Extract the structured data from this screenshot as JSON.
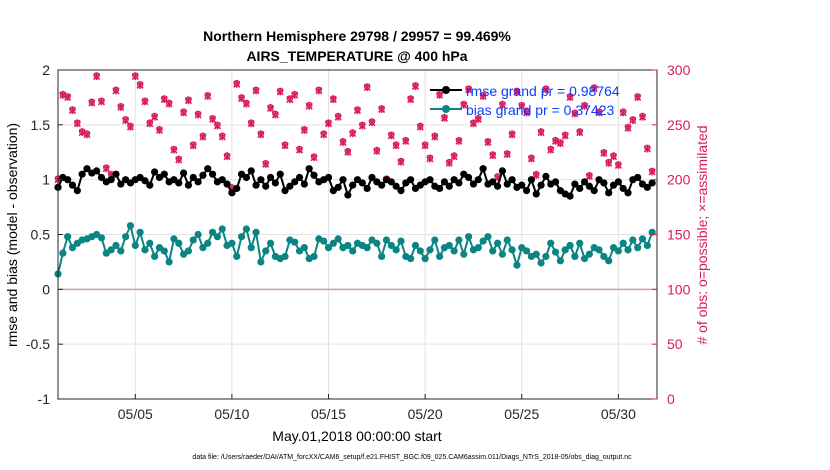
{
  "chart_data": {
    "type": "line",
    "title": "Northern Hemisphere 29798 / 29957 = 99.469%",
    "subtitle": "AIRS_TEMPERATURE @ 400 hPa",
    "xlabel": "May.01,2018 00:00:00 start",
    "ylabel": "rmse and bias (model - observation)",
    "y2label": "# of obs: o=possible; ×=assimilated",
    "footer": "data file: /Users/raeder/DAI/ATM_forcXX/CAM6_setup/f.e21.FHIST_BGC.f09_025.CAM6assim.011/Diags_NTrS_2018-05/obs_diag_output.nc",
    "xlim": [
      1,
      32
    ],
    "ylim": [
      -1,
      2
    ],
    "y2lim": [
      0,
      300
    ],
    "xticks": [
      5,
      10,
      15,
      20,
      25,
      30
    ],
    "xtick_labels": [
      "05/05",
      "05/10",
      "05/15",
      "05/20",
      "05/25",
      "05/30"
    ],
    "yticks": [
      -1,
      -0.5,
      0,
      0.5,
      1,
      1.5,
      2
    ],
    "ytick_labels": [
      "-1",
      "-0.5",
      "0",
      "0.5",
      "1",
      "1.5",
      "2"
    ],
    "y2ticks": [
      0,
      50,
      100,
      150,
      200,
      250,
      300
    ],
    "y2tick_labels": [
      "0",
      "50",
      "100",
      "150",
      "200",
      "250",
      "300"
    ],
    "grid": true,
    "legend_position": "top-right",
    "colors": {
      "rmse": "#000000",
      "bias": "#0b8583",
      "obs": "#d81b60",
      "zero_line": "#c9a0aa"
    },
    "series": [
      {
        "name": "rmse grand pr = 0.98764",
        "axis": "left",
        "color": "#000000",
        "x": [
          1.0,
          1.25,
          1.5,
          1.75,
          2.0,
          2.25,
          2.5,
          2.75,
          3.0,
          3.25,
          3.5,
          3.75,
          4.0,
          4.25,
          4.5,
          4.75,
          5.0,
          5.25,
          5.5,
          5.75,
          6.0,
          6.25,
          6.5,
          6.75,
          7.0,
          7.25,
          7.5,
          7.75,
          8.0,
          8.25,
          8.5,
          8.75,
          9.0,
          9.25,
          9.5,
          9.75,
          10.0,
          10.25,
          10.5,
          10.75,
          11.0,
          11.25,
          11.5,
          11.75,
          12.0,
          12.25,
          12.5,
          12.75,
          13.0,
          13.25,
          13.5,
          13.75,
          14.0,
          14.25,
          14.5,
          14.75,
          15.0,
          15.25,
          15.5,
          15.75,
          16.0,
          16.25,
          16.5,
          16.75,
          17.0,
          17.25,
          17.5,
          17.75,
          18.0,
          18.25,
          18.5,
          18.75,
          19.0,
          19.25,
          19.5,
          19.75,
          20.0,
          20.25,
          20.5,
          20.75,
          21.0,
          21.25,
          21.5,
          21.75,
          22.0,
          22.25,
          22.5,
          22.75,
          23.0,
          23.25,
          23.5,
          23.75,
          24.0,
          24.25,
          24.5,
          24.75,
          25.0,
          25.25,
          25.5,
          25.75,
          26.0,
          26.25,
          26.5,
          26.75,
          27.0,
          27.25,
          27.5,
          27.75,
          28.0,
          28.25,
          28.5,
          28.75,
          29.0,
          29.25,
          29.5,
          29.75,
          30.0,
          30.25,
          30.5,
          30.75,
          31.0,
          31.25,
          31.5,
          31.75
        ],
        "values": [
          0.93,
          1.02,
          1.0,
          0.95,
          0.9,
          1.05,
          1.1,
          1.06,
          1.08,
          1.02,
          0.98,
          1.0,
          1.05,
          0.96,
          1.0,
          0.97,
          1.0,
          1.02,
          0.99,
          0.95,
          1.07,
          1.02,
          1.05,
          0.98,
          1.0,
          0.97,
          1.06,
          0.95,
          1.02,
          0.98,
          1.04,
          1.1,
          1.05,
          0.98,
          1.0,
          0.96,
          0.88,
          0.92,
          1.05,
          1.02,
          1.08,
          0.95,
          1.0,
          0.94,
          1.02,
          0.97,
          1.05,
          0.9,
          0.94,
          0.98,
          1.02,
          0.96,
          1.1,
          1.04,
          0.98,
          1.0,
          1.02,
          0.9,
          0.93,
          1.0,
          0.86,
          0.95,
          1.0,
          0.97,
          0.92,
          1.02,
          0.98,
          0.95,
          1.0,
          0.98,
          0.94,
          0.9,
          0.97,
          1.0,
          0.92,
          0.95,
          0.98,
          1.0,
          0.94,
          0.92,
          0.98,
          0.94,
          1.0,
          0.97,
          1.05,
          1.02,
          0.96,
          1.0,
          1.1,
          0.96,
          0.98,
          0.94,
          1.08,
          0.96,
          1.0,
          0.93,
          0.95,
          0.9,
          1.0,
          0.87,
          0.95,
          1.03,
          0.96,
          0.98,
          0.9,
          0.87,
          0.85,
          0.96,
          0.92,
          0.98,
          0.94,
          0.9,
          1.0,
          0.97,
          0.88,
          0.95,
          0.98,
          0.92,
          0.88,
          1.0,
          1.02,
          0.96,
          0.93,
          0.97
        ]
      },
      {
        "name": "bias grand pr = 0.37423",
        "axis": "left",
        "color": "#0b8583",
        "x": [
          1.0,
          1.25,
          1.5,
          1.75,
          2.0,
          2.25,
          2.5,
          2.75,
          3.0,
          3.25,
          3.5,
          3.75,
          4.0,
          4.25,
          4.5,
          4.75,
          5.0,
          5.25,
          5.5,
          5.75,
          6.0,
          6.25,
          6.5,
          6.75,
          7.0,
          7.25,
          7.5,
          7.75,
          8.0,
          8.25,
          8.5,
          8.75,
          9.0,
          9.25,
          9.5,
          9.75,
          10.0,
          10.25,
          10.5,
          10.75,
          11.0,
          11.25,
          11.5,
          11.75,
          12.0,
          12.25,
          12.5,
          12.75,
          13.0,
          13.25,
          13.5,
          13.75,
          14.0,
          14.25,
          14.5,
          14.75,
          15.0,
          15.25,
          15.5,
          15.75,
          16.0,
          16.25,
          16.5,
          16.75,
          17.0,
          17.25,
          17.5,
          17.75,
          18.0,
          18.25,
          18.5,
          18.75,
          19.0,
          19.25,
          19.5,
          19.75,
          20.0,
          20.25,
          20.5,
          20.75,
          21.0,
          21.25,
          21.5,
          21.75,
          22.0,
          22.25,
          22.5,
          22.75,
          23.0,
          23.25,
          23.5,
          23.75,
          24.0,
          24.25,
          24.5,
          24.75,
          25.0,
          25.25,
          25.5,
          25.75,
          26.0,
          26.25,
          26.5,
          26.75,
          27.0,
          27.25,
          27.5,
          27.75,
          28.0,
          28.25,
          28.5,
          28.75,
          29.0,
          29.25,
          29.5,
          29.75,
          30.0,
          30.25,
          30.5,
          30.75,
          31.0,
          31.25,
          31.5,
          31.75
        ],
        "values": [
          0.14,
          0.33,
          0.48,
          0.38,
          0.42,
          0.45,
          0.46,
          0.48,
          0.5,
          0.47,
          0.33,
          0.36,
          0.4,
          0.35,
          0.48,
          0.58,
          0.4,
          0.52,
          0.36,
          0.42,
          0.3,
          0.38,
          0.35,
          0.25,
          0.46,
          0.42,
          0.32,
          0.35,
          0.45,
          0.5,
          0.38,
          0.42,
          0.52,
          0.48,
          0.55,
          0.4,
          0.42,
          0.3,
          0.48,
          0.55,
          0.38,
          0.52,
          0.25,
          0.35,
          0.42,
          0.3,
          0.28,
          0.3,
          0.45,
          0.43,
          0.35,
          0.38,
          0.28,
          0.3,
          0.46,
          0.44,
          0.38,
          0.42,
          0.46,
          0.38,
          0.4,
          0.35,
          0.42,
          0.4,
          0.38,
          0.45,
          0.42,
          0.3,
          0.45,
          0.4,
          0.36,
          0.44,
          0.3,
          0.28,
          0.4,
          0.35,
          0.28,
          0.36,
          0.45,
          0.3,
          0.38,
          0.4,
          0.35,
          0.45,
          0.32,
          0.48,
          0.36,
          0.38,
          0.44,
          0.48,
          0.35,
          0.42,
          0.32,
          0.45,
          0.36,
          0.22,
          0.38,
          0.35,
          0.3,
          0.32,
          0.24,
          0.3,
          0.42,
          0.34,
          0.26,
          0.36,
          0.4,
          0.3,
          0.42,
          0.28,
          0.32,
          0.38,
          0.36,
          0.3,
          0.26,
          0.38,
          0.35,
          0.42,
          0.36,
          0.45,
          0.38,
          0.46,
          0.4,
          0.52
        ]
      },
      {
        "name": "obs possible",
        "axis": "right",
        "color": "#d81b60",
        "marker": "o",
        "x": [
          1.0,
          1.25,
          1.5,
          1.75,
          2.0,
          2.25,
          2.5,
          2.75,
          3.0,
          3.25,
          3.5,
          3.75,
          4.0,
          4.25,
          4.5,
          4.75,
          5.0,
          5.25,
          5.5,
          5.75,
          6.0,
          6.25,
          6.5,
          6.75,
          7.0,
          7.25,
          7.5,
          7.75,
          8.0,
          8.25,
          8.5,
          8.75,
          9.0,
          9.25,
          9.5,
          9.75,
          10.0,
          10.25,
          10.5,
          10.75,
          11.0,
          11.25,
          11.5,
          11.75,
          12.0,
          12.25,
          12.5,
          12.75,
          13.0,
          13.25,
          13.5,
          13.75,
          14.0,
          14.25,
          14.5,
          14.75,
          15.0,
          15.25,
          15.5,
          15.75,
          16.0,
          16.25,
          16.5,
          16.75,
          17.0,
          17.25,
          17.5,
          17.75,
          18.0,
          18.25,
          18.5,
          18.75,
          19.0,
          19.25,
          19.5,
          19.75,
          20.0,
          20.25,
          20.5,
          20.75,
          21.0,
          21.25,
          21.5,
          21.75,
          22.0,
          22.25,
          22.5,
          22.75,
          23.0,
          23.25,
          23.5,
          23.75,
          24.0,
          24.25,
          24.5,
          24.75,
          25.0,
          25.25,
          25.5,
          25.75,
          26.0,
          26.25,
          26.5,
          26.75,
          27.0,
          27.25,
          27.5,
          27.75,
          28.0,
          28.25,
          28.5,
          28.75,
          29.0,
          29.25,
          29.5,
          29.75,
          30.0,
          30.25,
          30.5,
          30.75,
          31.0,
          31.25,
          31.5,
          31.75
        ],
        "values": [
          201,
          278,
          276,
          264,
          252,
          244,
          242,
          271,
          295,
          272,
          211,
          205,
          282,
          267,
          255,
          249,
          295,
          287,
          272,
          252,
          258,
          246,
          274,
          270,
          228,
          219,
          262,
          273,
          232,
          260,
          240,
          277,
          256,
          250,
          240,
          222,
          193,
          288,
          275,
          270,
          252,
          282,
          242,
          215,
          266,
          260,
          281,
          232,
          274,
          278,
          228,
          246,
          268,
          221,
          282,
          242,
          252,
          274,
          258,
          235,
          226,
          243,
          264,
          250,
          285,
          253,
          227,
          265,
          201,
          241,
          232,
          217,
          236,
          274,
          286,
          249,
          232,
          220,
          240,
          278,
          257,
          216,
          222,
          236,
          269,
          283,
          252,
          256,
          277,
          235,
          223,
          203,
          269,
          224,
          242,
          281,
          268,
          262,
          220,
          205,
          244,
          283,
          228,
          236,
          234,
          241,
          276,
          261,
          244,
          268,
          204,
          284,
          262,
          225,
          216,
          222,
          214,
          262,
          248,
          255,
          276,
          258,
          229,
          208
        ]
      },
      {
        "name": "obs assimilated",
        "axis": "right",
        "color": "#d81b60",
        "marker": "x",
        "x": [
          1.0,
          1.25,
          1.5,
          1.75,
          2.0,
          2.25,
          2.5,
          2.75,
          3.0,
          3.25,
          3.5,
          3.75,
          4.0,
          4.25,
          4.5,
          4.75,
          5.0,
          5.25,
          5.5,
          5.75,
          6.0,
          6.25,
          6.5,
          6.75,
          7.0,
          7.25,
          7.5,
          7.75,
          8.0,
          8.25,
          8.5,
          8.75,
          9.0,
          9.25,
          9.5,
          9.75,
          10.0,
          10.25,
          10.5,
          10.75,
          11.0,
          11.25,
          11.5,
          11.75,
          12.0,
          12.25,
          12.5,
          12.75,
          13.0,
          13.25,
          13.5,
          13.75,
          14.0,
          14.25,
          14.5,
          14.75,
          15.0,
          15.25,
          15.5,
          15.75,
          16.0,
          16.25,
          16.5,
          16.75,
          17.0,
          17.25,
          17.5,
          17.75,
          18.0,
          18.25,
          18.5,
          18.75,
          19.0,
          19.25,
          19.5,
          19.75,
          20.0,
          20.25,
          20.5,
          20.75,
          21.0,
          21.25,
          21.5,
          21.75,
          22.0,
          22.25,
          22.5,
          22.75,
          23.0,
          23.25,
          23.5,
          23.75,
          24.0,
          24.25,
          24.5,
          24.75,
          25.0,
          25.25,
          25.5,
          25.75,
          26.0,
          26.25,
          26.5,
          26.75,
          27.0,
          27.25,
          27.5,
          27.75,
          28.0,
          28.25,
          28.5,
          28.75,
          29.0,
          29.25,
          29.5,
          29.75,
          30.0,
          30.25,
          30.5,
          30.75,
          31.0,
          31.25,
          31.5,
          31.75
        ],
        "values": [
          200,
          277,
          275,
          263,
          251,
          243,
          241,
          270,
          294,
          271,
          210,
          204,
          281,
          266,
          254,
          248,
          294,
          286,
          271,
          251,
          257,
          245,
          273,
          269,
          227,
          218,
          261,
          272,
          231,
          259,
          239,
          276,
          255,
          249,
          239,
          221,
          192,
          287,
          274,
          269,
          251,
          281,
          241,
          214,
          265,
          259,
          280,
          231,
          273,
          277,
          227,
          245,
          267,
          220,
          281,
          241,
          251,
          273,
          257,
          234,
          225,
          242,
          263,
          249,
          284,
          252,
          226,
          264,
          200,
          240,
          231,
          216,
          235,
          273,
          285,
          248,
          231,
          219,
          239,
          277,
          256,
          215,
          221,
          235,
          268,
          282,
          251,
          255,
          276,
          234,
          222,
          202,
          268,
          223,
          241,
          280,
          267,
          261,
          219,
          204,
          243,
          282,
          227,
          235,
          233,
          240,
          275,
          260,
          243,
          267,
          203,
          283,
          261,
          224,
          215,
          221,
          213,
          261,
          247,
          254,
          275,
          257,
          228,
          207
        ]
      }
    ]
  }
}
